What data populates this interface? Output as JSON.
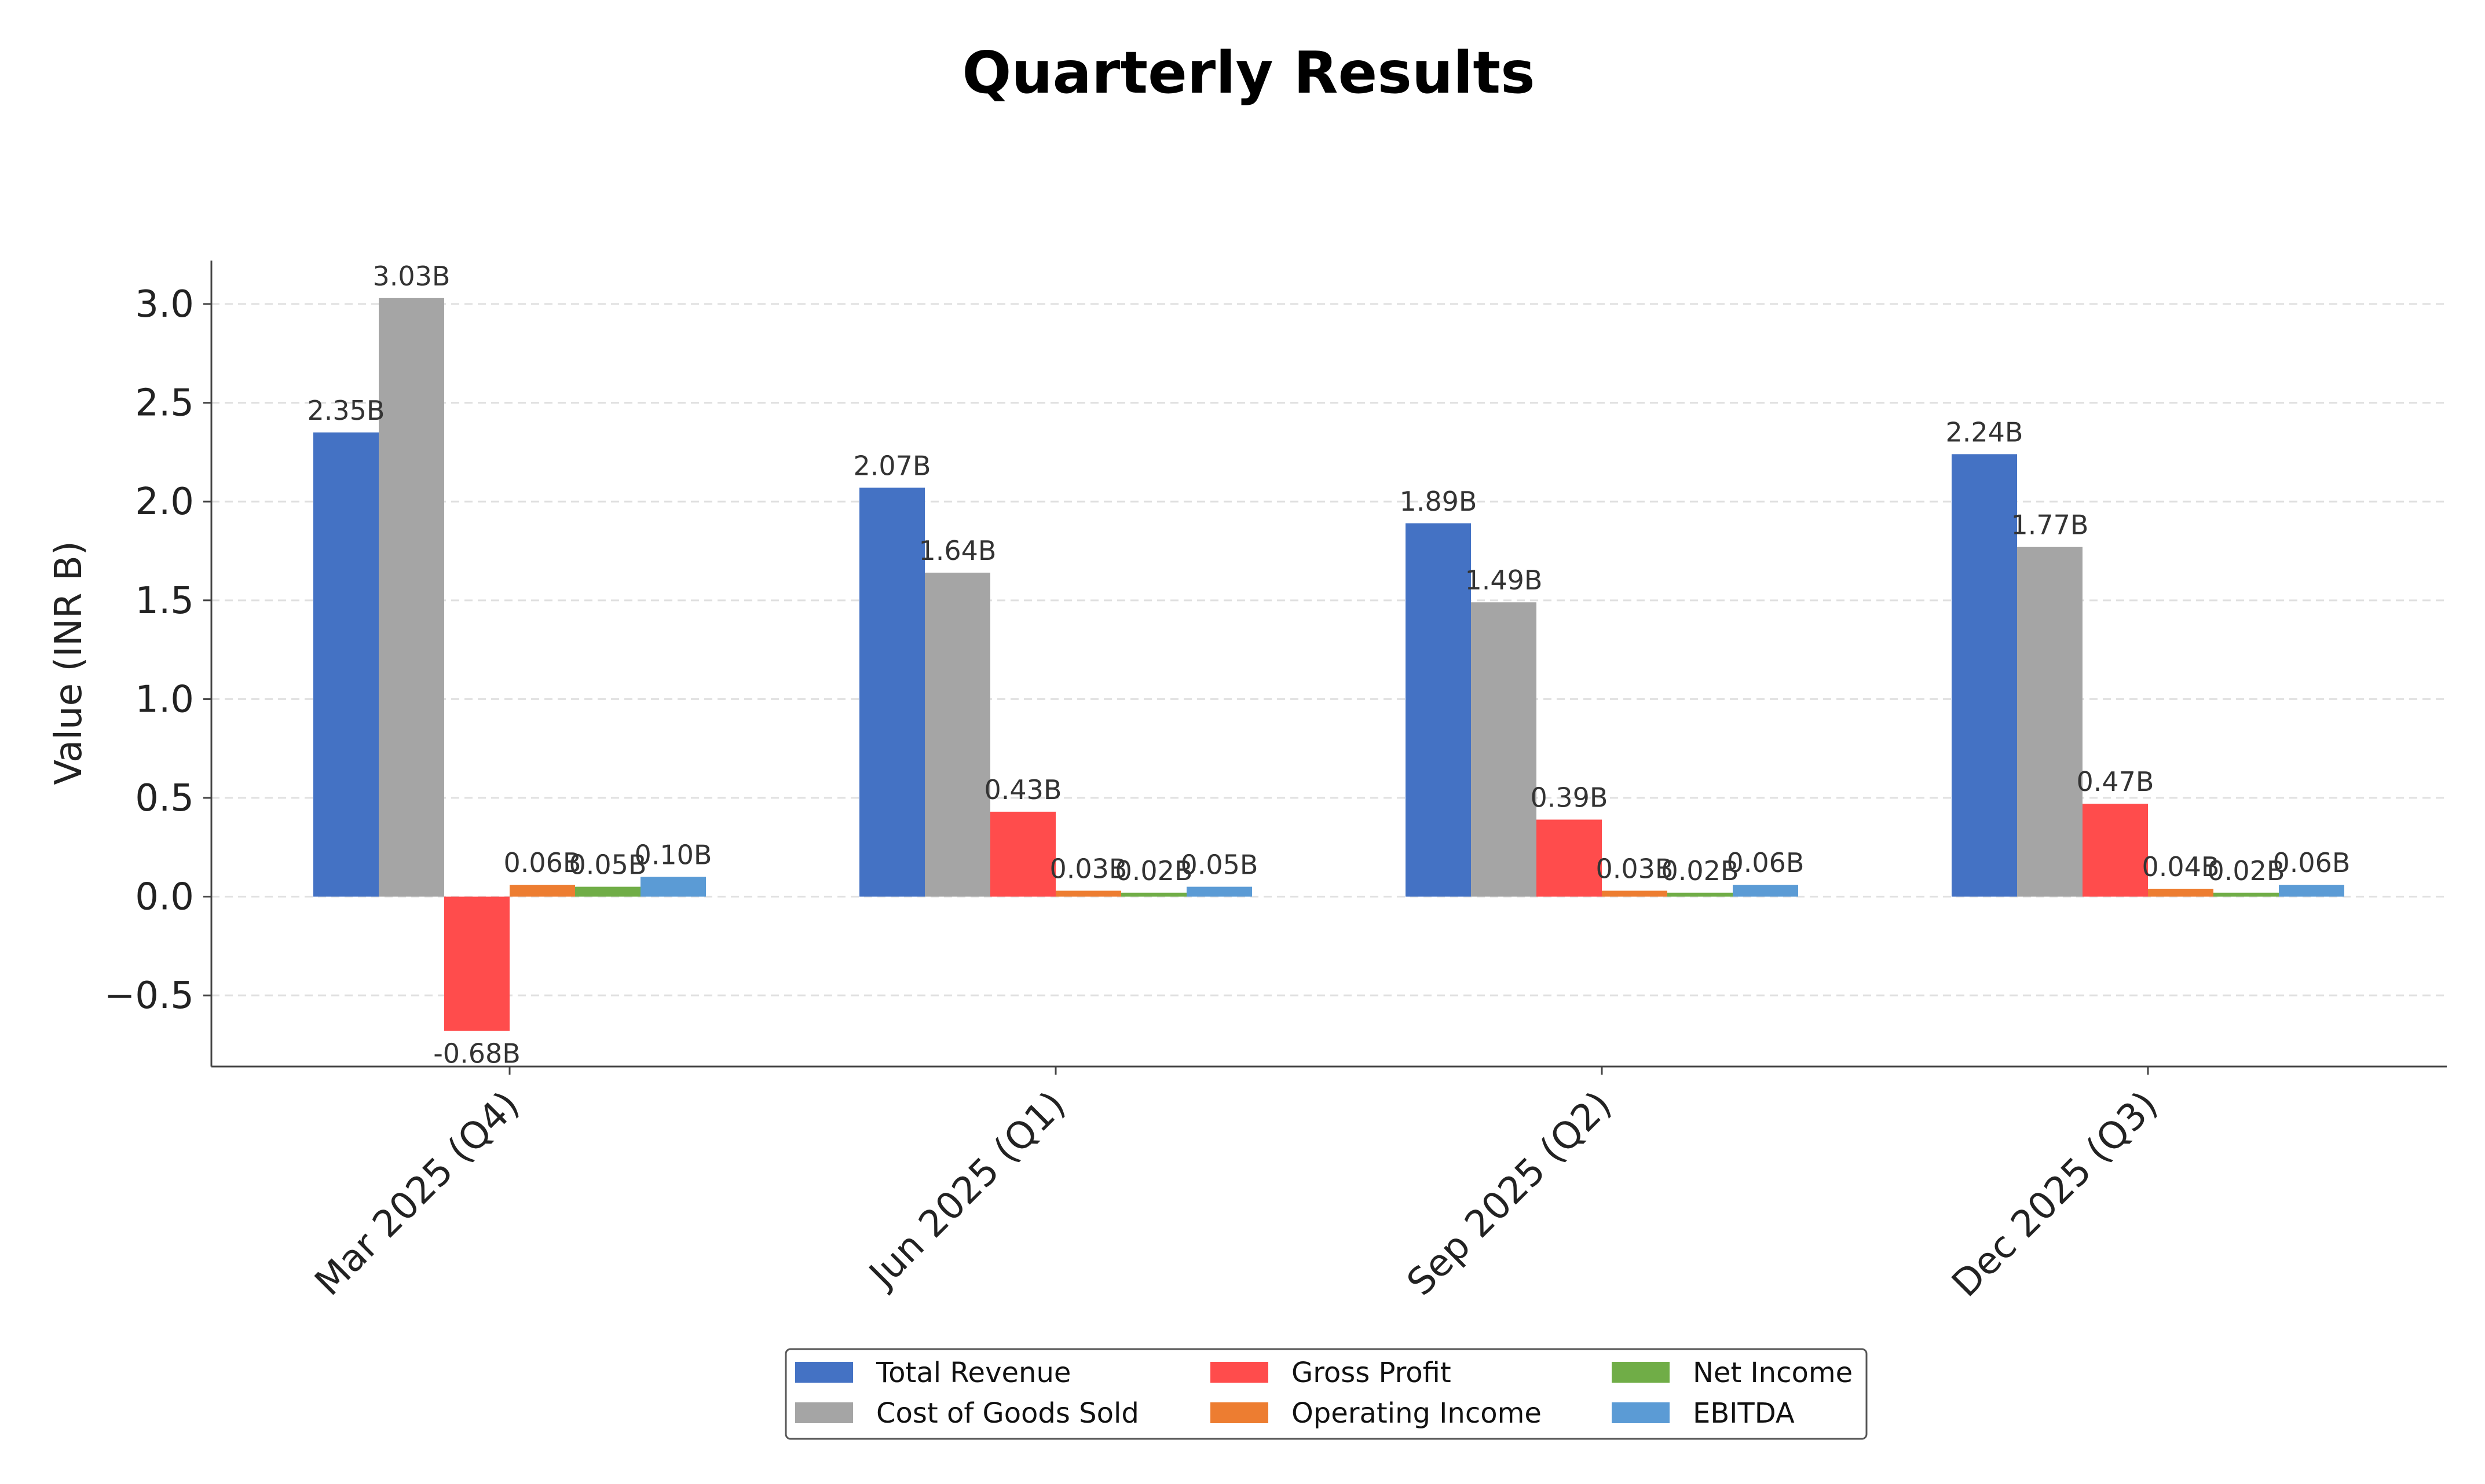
{
  "chart_data": {
    "type": "bar",
    "title": "Quarterly Results",
    "xlabel": "",
    "ylabel": "Value (INR B)",
    "ylim": [
      -0.86,
      3.22
    ],
    "yticks": [
      -0.5,
      0.0,
      0.5,
      1.0,
      1.5,
      2.0,
      2.5,
      3.0
    ],
    "ytick_labels": [
      "−0.5",
      "0.0",
      "0.5",
      "1.0",
      "1.5",
      "2.0",
      "2.5",
      "3.0"
    ],
    "grid": "horizontal dashed",
    "legend_position": "bottom-center",
    "categories": [
      "Mar 2025 (Q4)",
      "Jun 2025 (Q1)",
      "Sep 2025 (Q2)",
      "Dec 2025 (Q3)"
    ],
    "series": [
      {
        "name": "Total Revenue",
        "color": "#4472C4",
        "values": [
          2.35,
          2.07,
          1.89,
          2.24
        ],
        "labels": [
          "2.35B",
          "2.07B",
          "1.89B",
          "2.24B"
        ]
      },
      {
        "name": "Cost of Goods Sold",
        "color": "#A5A5A5",
        "values": [
          3.03,
          1.64,
          1.49,
          1.77
        ],
        "labels": [
          "3.03B",
          "1.64B",
          "1.49B",
          "1.77B"
        ]
      },
      {
        "name": "Gross Profit",
        "color": "#FF4C4C",
        "values": [
          -0.68,
          0.43,
          0.39,
          0.47
        ],
        "labels": [
          "-0.68B",
          "0.43B",
          "0.39B",
          "0.47B"
        ]
      },
      {
        "name": "Operating Income",
        "color": "#ED7D31",
        "values": [
          0.06,
          0.03,
          0.03,
          0.04
        ],
        "labels": [
          "0.06B",
          "0.03B",
          "0.03B",
          "0.04B"
        ]
      },
      {
        "name": "Net Income",
        "color": "#70AD47",
        "values": [
          0.05,
          0.02,
          0.02,
          0.02
        ],
        "labels": [
          "0.05B",
          "0.02B",
          "0.02B",
          "0.02B"
        ]
      },
      {
        "name": "EBITDA",
        "color": "#5B9BD5",
        "values": [
          0.1,
          0.05,
          0.06,
          0.06
        ],
        "labels": [
          "0.10B",
          "0.05B",
          "0.06B",
          "0.06B"
        ]
      }
    ]
  }
}
